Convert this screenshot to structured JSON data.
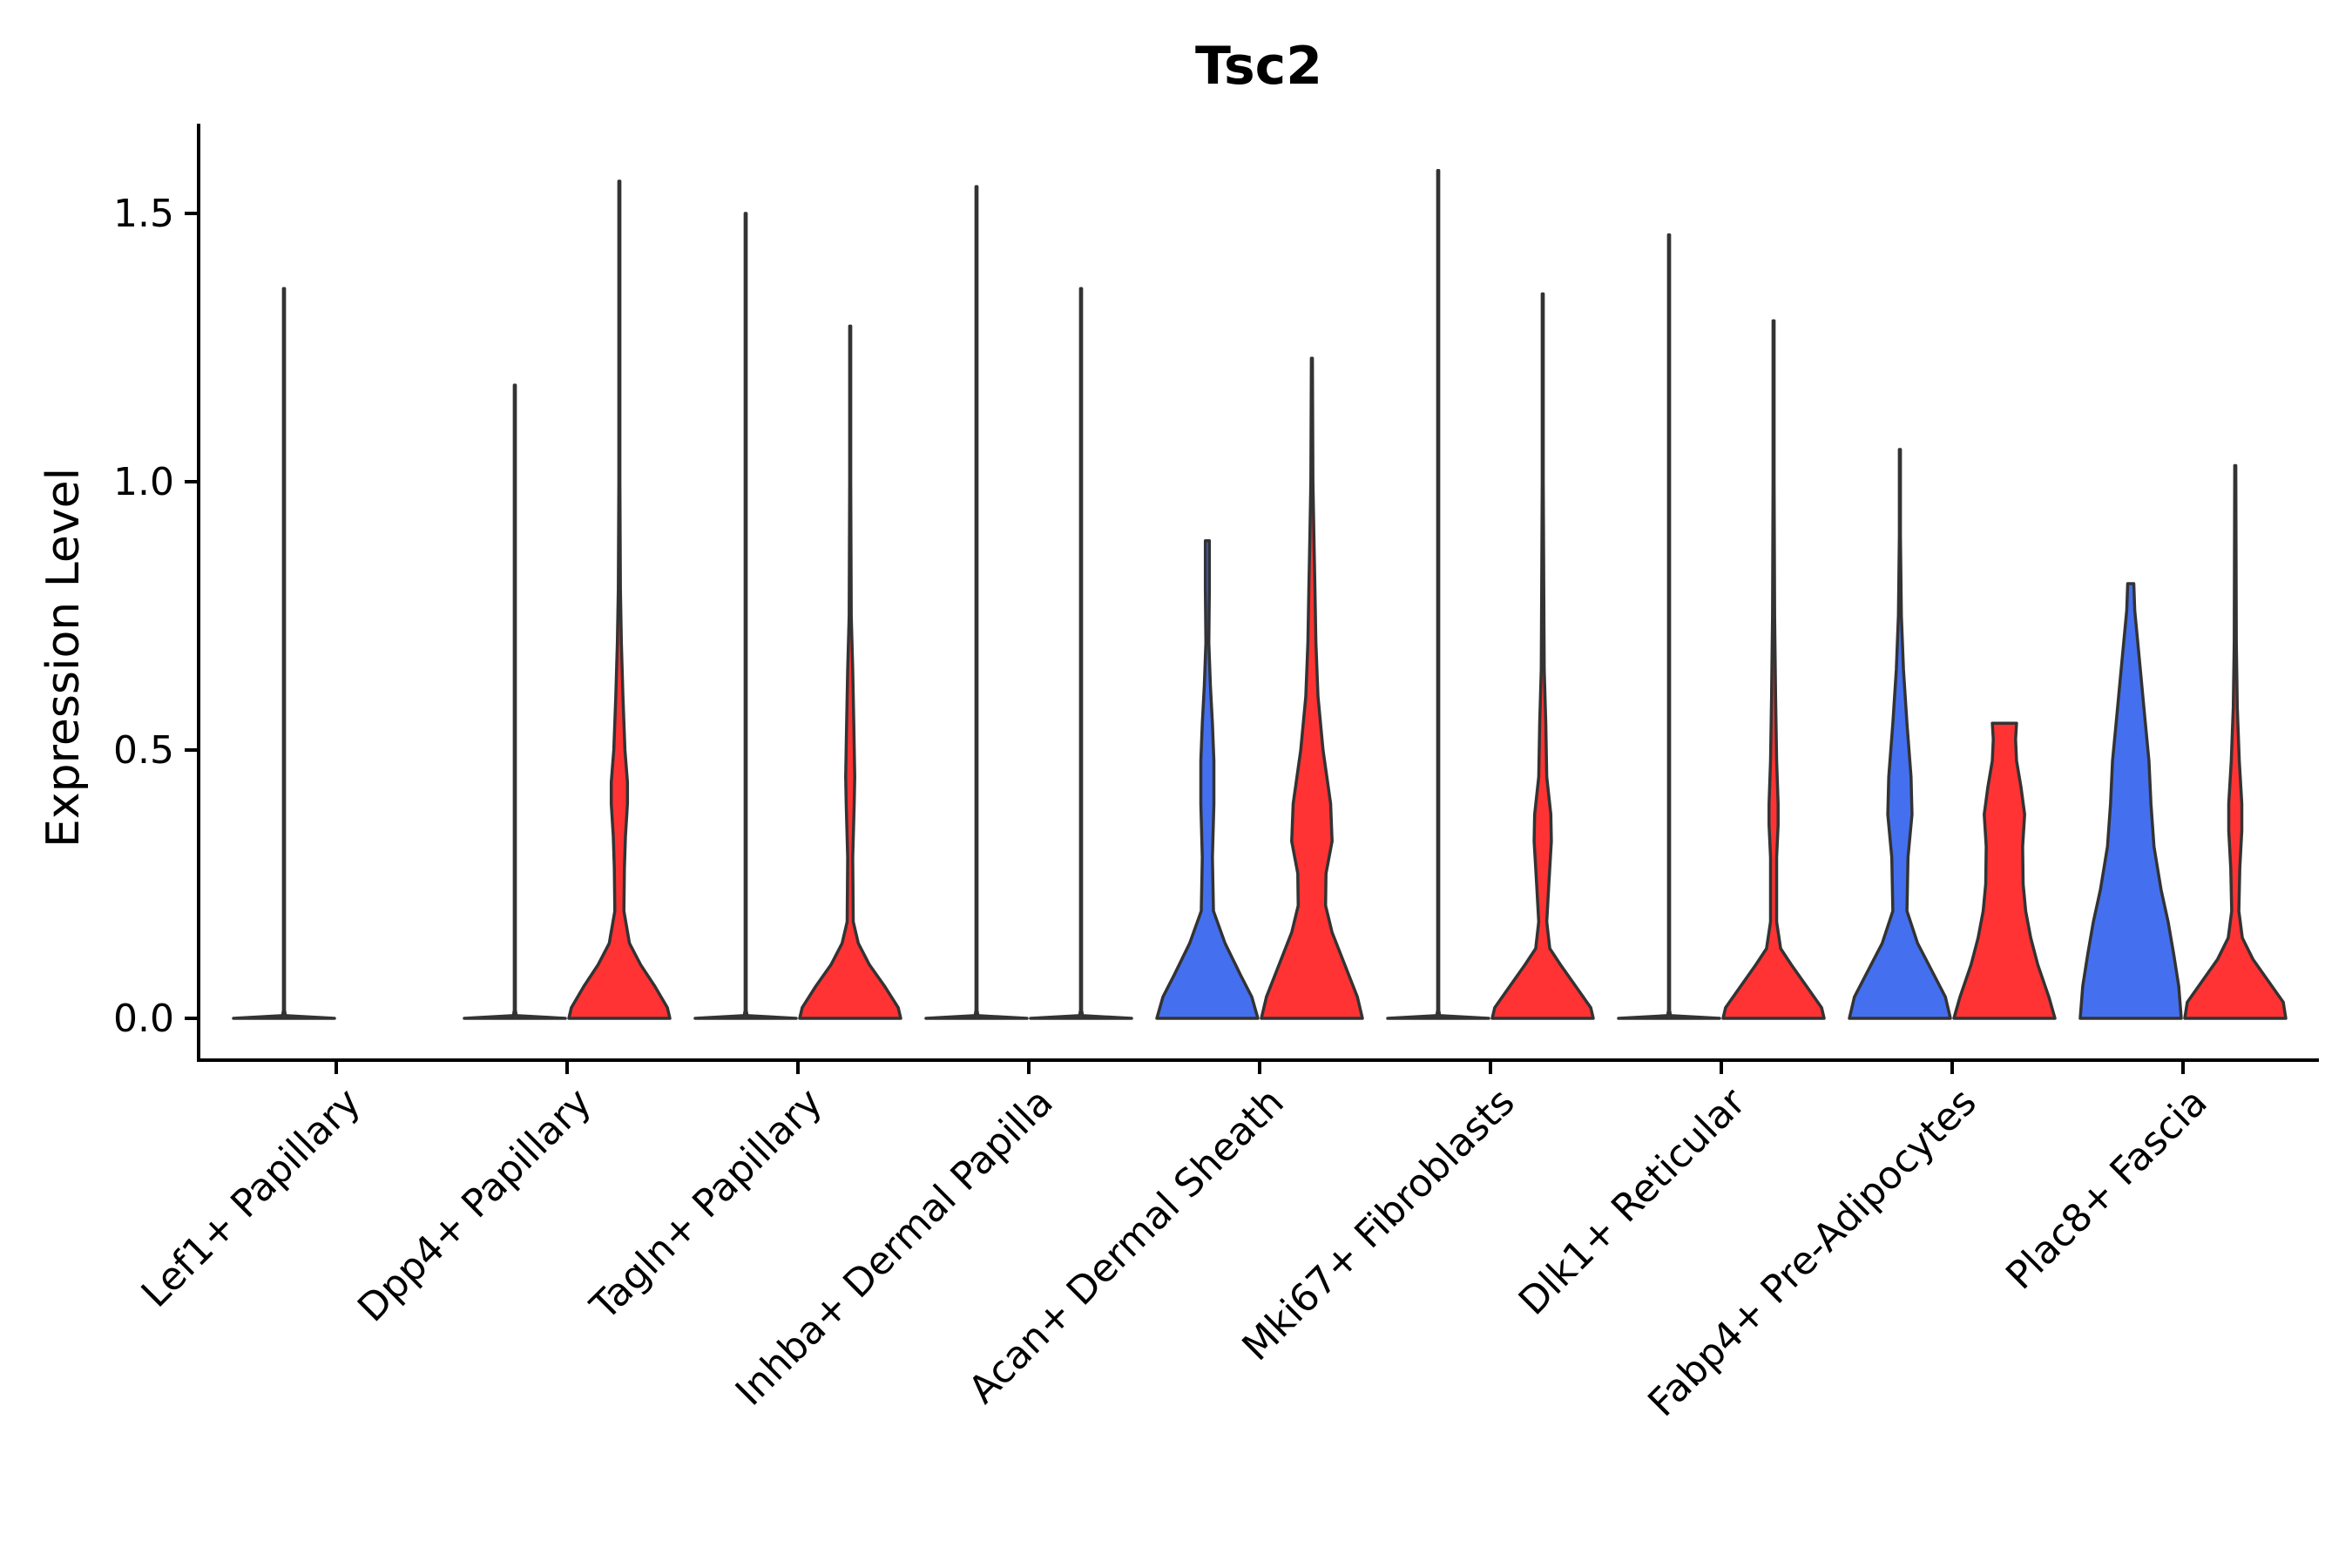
{
  "chart_data": {
    "type": "violin",
    "title": "Tsc2",
    "xlabel": "",
    "ylabel": "Expression Level",
    "ylim": [
      -0.08,
      1.66
    ],
    "yticks": [
      0.0,
      0.5,
      1.0,
      1.5
    ],
    "ytick_labels": [
      "0.0",
      "0.5",
      "1.0",
      "1.5"
    ],
    "grid": false,
    "legend": "none",
    "group_colors": {
      "A": "#4470ef",
      "B": "#ff3333"
    },
    "categories": [
      "Lef1+ Papillary",
      "Dpp4+ Papillary",
      "Tagln+ Papillary",
      "Inhba+ Dermal Papilla",
      "Acan+ Dermal Sheath",
      "Mki67+ Fibroblasts",
      "Dlk1+ Reticular",
      "Fabp4+ Pre-Adipocytes",
      "Plac8+ Fascia"
    ],
    "violins": [
      {
        "category": "Lef1+ Papillary",
        "group": "A",
        "max": 1.36,
        "profile": [
          [
            0,
            1
          ],
          [
            0.005,
            0.03
          ],
          [
            0.015,
            0.01
          ],
          [
            1.36,
            0.01
          ]
        ]
      },
      {
        "category": "Dpp4+ Papillary",
        "group": "A",
        "max": 1.18,
        "profile": [
          [
            0,
            1
          ],
          [
            0.005,
            0.03
          ],
          [
            0.015,
            0.01
          ],
          [
            1.18,
            0.01
          ]
        ]
      },
      {
        "category": "Dpp4+ Papillary",
        "group": "B",
        "max": 1.56,
        "profile": [
          [
            0,
            1
          ],
          [
            0.02,
            0.95
          ],
          [
            0.06,
            0.7
          ],
          [
            0.1,
            0.42
          ],
          [
            0.14,
            0.2
          ],
          [
            0.2,
            0.09
          ],
          [
            0.28,
            0.1
          ],
          [
            0.34,
            0.12
          ],
          [
            0.4,
            0.16
          ],
          [
            0.44,
            0.16
          ],
          [
            0.5,
            0.11
          ],
          [
            0.6,
            0.07
          ],
          [
            0.7,
            0.04
          ],
          [
            0.8,
            0.02
          ],
          [
            1.0,
            0.01
          ],
          [
            1.56,
            0.01
          ]
        ]
      },
      {
        "category": "Tagln+ Papillary",
        "group": "A",
        "max": 1.5,
        "profile": [
          [
            0,
            1
          ],
          [
            0.005,
            0.03
          ],
          [
            0.015,
            0.01
          ],
          [
            1.5,
            0.01
          ]
        ]
      },
      {
        "category": "Tagln+ Papillary",
        "group": "B",
        "max": 1.29,
        "profile": [
          [
            0,
            1
          ],
          [
            0.02,
            0.95
          ],
          [
            0.06,
            0.68
          ],
          [
            0.1,
            0.38
          ],
          [
            0.14,
            0.16
          ],
          [
            0.18,
            0.06
          ],
          [
            0.3,
            0.05
          ],
          [
            0.4,
            0.08
          ],
          [
            0.45,
            0.09
          ],
          [
            0.55,
            0.07
          ],
          [
            0.65,
            0.05
          ],
          [
            0.75,
            0.02
          ],
          [
            1.0,
            0.01
          ],
          [
            1.29,
            0.01
          ]
        ]
      },
      {
        "category": "Inhba+ Dermal Papilla",
        "group": "A",
        "max": 1.55,
        "profile": [
          [
            0,
            1
          ],
          [
            0.005,
            0.03
          ],
          [
            0.015,
            0.01
          ],
          [
            1.55,
            0.01
          ]
        ]
      },
      {
        "category": "Inhba+ Dermal Papilla",
        "group": "B",
        "max": 1.36,
        "profile": [
          [
            0,
            1
          ],
          [
            0.005,
            0.03
          ],
          [
            0.015,
            0.01
          ],
          [
            1.36,
            0.01
          ]
        ]
      },
      {
        "category": "Acan+ Dermal Sheath",
        "group": "A",
        "max": 0.89,
        "profile": [
          [
            0,
            1
          ],
          [
            0.04,
            0.88
          ],
          [
            0.08,
            0.66
          ],
          [
            0.14,
            0.35
          ],
          [
            0.2,
            0.12
          ],
          [
            0.3,
            0.1
          ],
          [
            0.4,
            0.13
          ],
          [
            0.48,
            0.13
          ],
          [
            0.55,
            0.1
          ],
          [
            0.62,
            0.06
          ],
          [
            0.7,
            0.03
          ],
          [
            0.8,
            0.04
          ],
          [
            0.89,
            0.04
          ]
        ]
      },
      {
        "category": "Acan+ Dermal Sheath",
        "group": "B",
        "max": 1.23,
        "profile": [
          [
            0,
            1
          ],
          [
            0.04,
            0.9
          ],
          [
            0.1,
            0.65
          ],
          [
            0.16,
            0.4
          ],
          [
            0.21,
            0.27
          ],
          [
            0.27,
            0.28
          ],
          [
            0.33,
            0.4
          ],
          [
            0.4,
            0.37
          ],
          [
            0.5,
            0.22
          ],
          [
            0.6,
            0.12
          ],
          [
            0.7,
            0.08
          ],
          [
            0.8,
            0.06
          ],
          [
            0.9,
            0.04
          ],
          [
            1.0,
            0.02
          ],
          [
            1.23,
            0.01
          ]
        ]
      },
      {
        "category": "Mki67+ Fibroblasts",
        "group": "A",
        "max": 1.58,
        "profile": [
          [
            0,
            1
          ],
          [
            0.005,
            0.03
          ],
          [
            0.015,
            0.01
          ],
          [
            1.58,
            0.01
          ]
        ]
      },
      {
        "category": "Mki67+ Fibroblasts",
        "group": "B",
        "max": 1.35,
        "profile": [
          [
            0,
            1
          ],
          [
            0.02,
            0.95
          ],
          [
            0.06,
            0.65
          ],
          [
            0.1,
            0.35
          ],
          [
            0.13,
            0.14
          ],
          [
            0.18,
            0.08
          ],
          [
            0.25,
            0.12
          ],
          [
            0.33,
            0.17
          ],
          [
            0.38,
            0.16
          ],
          [
            0.45,
            0.08
          ],
          [
            0.55,
            0.06
          ],
          [
            0.65,
            0.03
          ],
          [
            0.8,
            0.02
          ],
          [
            1.0,
            0.01
          ],
          [
            1.35,
            0.01
          ]
        ]
      },
      {
        "category": "Dlk1+ Reticular",
        "group": "A",
        "max": 1.46,
        "profile": [
          [
            0,
            1
          ],
          [
            0.005,
            0.03
          ],
          [
            0.015,
            0.01
          ],
          [
            1.46,
            0.01
          ]
        ]
      },
      {
        "category": "Dlk1+ Reticular",
        "group": "B",
        "max": 1.3,
        "profile": [
          [
            0,
            1
          ],
          [
            0.02,
            0.95
          ],
          [
            0.06,
            0.65
          ],
          [
            0.1,
            0.35
          ],
          [
            0.13,
            0.14
          ],
          [
            0.18,
            0.06
          ],
          [
            0.3,
            0.06
          ],
          [
            0.36,
            0.09
          ],
          [
            0.4,
            0.09
          ],
          [
            0.48,
            0.06
          ],
          [
            0.6,
            0.04
          ],
          [
            0.75,
            0.02
          ],
          [
            1.0,
            0.01
          ],
          [
            1.3,
            0.01
          ]
        ]
      },
      {
        "category": "Fabp4+ Pre-Adipocytes",
        "group": "A",
        "max": 1.06,
        "profile": [
          [
            0,
            1
          ],
          [
            0.04,
            0.9
          ],
          [
            0.08,
            0.68
          ],
          [
            0.14,
            0.35
          ],
          [
            0.2,
            0.14
          ],
          [
            0.3,
            0.16
          ],
          [
            0.38,
            0.24
          ],
          [
            0.45,
            0.22
          ],
          [
            0.55,
            0.14
          ],
          [
            0.65,
            0.07
          ],
          [
            0.75,
            0.03
          ],
          [
            0.9,
            0.01
          ],
          [
            1.06,
            0.01
          ]
        ]
      },
      {
        "category": "Fabp4+ Pre-Adipocytes",
        "group": "B",
        "max": 0.55,
        "profile": [
          [
            0,
            1
          ],
          [
            0.04,
            0.88
          ],
          [
            0.1,
            0.66
          ],
          [
            0.15,
            0.52
          ],
          [
            0.2,
            0.42
          ],
          [
            0.25,
            0.37
          ],
          [
            0.32,
            0.36
          ],
          [
            0.38,
            0.4
          ],
          [
            0.43,
            0.33
          ],
          [
            0.48,
            0.24
          ],
          [
            0.52,
            0.22
          ],
          [
            0.55,
            0.24
          ]
        ]
      },
      {
        "category": "Plac8+ Fascia",
        "group": "A",
        "max": 0.81,
        "profile": [
          [
            0,
            1
          ],
          [
            0.06,
            0.95
          ],
          [
            0.12,
            0.85
          ],
          [
            0.18,
            0.74
          ],
          [
            0.24,
            0.6
          ],
          [
            0.32,
            0.46
          ],
          [
            0.4,
            0.4
          ],
          [
            0.48,
            0.36
          ],
          [
            0.56,
            0.28
          ],
          [
            0.64,
            0.2
          ],
          [
            0.7,
            0.14
          ],
          [
            0.76,
            0.08
          ],
          [
            0.81,
            0.06
          ]
        ]
      },
      {
        "category": "Plac8+ Fascia",
        "group": "B",
        "max": 1.03,
        "profile": [
          [
            0,
            1
          ],
          [
            0.03,
            0.95
          ],
          [
            0.07,
            0.65
          ],
          [
            0.11,
            0.35
          ],
          [
            0.15,
            0.14
          ],
          [
            0.2,
            0.07
          ],
          [
            0.28,
            0.09
          ],
          [
            0.35,
            0.13
          ],
          [
            0.4,
            0.13
          ],
          [
            0.48,
            0.08
          ],
          [
            0.58,
            0.04
          ],
          [
            0.7,
            0.02
          ],
          [
            1.03,
            0.01
          ]
        ]
      }
    ]
  }
}
